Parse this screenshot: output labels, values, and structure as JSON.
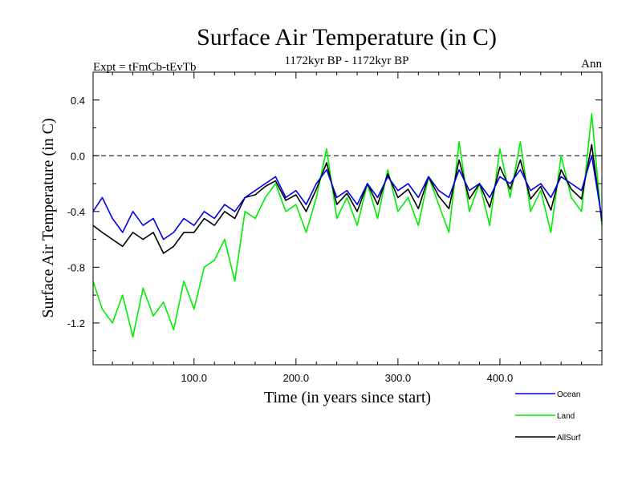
{
  "chart_data": {
    "type": "line",
    "title": "Surface Air Temperature (in C)",
    "subtitle": "1172kyr BP - 1172kyr BP",
    "left_label": "Expt = tFmCb-tEvTb",
    "right_label": "Ann",
    "xlabel": "Time (in years since start)",
    "ylabel": "Surface Air Temperature (in C)",
    "xlim": [
      1,
      500
    ],
    "ylim": [
      -1.5,
      0.6
    ],
    "xticks": [
      100,
      200,
      300,
      400
    ],
    "xtick_labels": [
      "100.0",
      "200.0",
      "300.0",
      "400.0"
    ],
    "yticks": [
      -1.2,
      -0.8,
      -0.4,
      0.0,
      0.4
    ],
    "ytick_labels": [
      "-1.2",
      "-0.8",
      "-0.4",
      "0.0",
      "0.4"
    ],
    "reference_line": 0.0,
    "legend_position": "bottom-right",
    "series": [
      {
        "name": "Ocean",
        "color": "#0000ee",
        "x": [
          1,
          10,
          20,
          30,
          40,
          50,
          60,
          70,
          80,
          90,
          100,
          110,
          120,
          130,
          140,
          150,
          160,
          170,
          180,
          190,
          200,
          210,
          220,
          230,
          240,
          250,
          260,
          270,
          280,
          290,
          300,
          310,
          320,
          330,
          340,
          350,
          360,
          370,
          380,
          390,
          400,
          410,
          420,
          430,
          440,
          450,
          460,
          470,
          480,
          490,
          500
        ],
        "values": [
          -0.4,
          -0.3,
          -0.45,
          -0.55,
          -0.4,
          -0.5,
          -0.45,
          -0.6,
          -0.55,
          -0.45,
          -0.5,
          -0.4,
          -0.45,
          -0.35,
          -0.4,
          -0.3,
          -0.25,
          -0.2,
          -0.15,
          -0.3,
          -0.25,
          -0.35,
          -0.2,
          -0.1,
          -0.3,
          -0.25,
          -0.35,
          -0.2,
          -0.3,
          -0.15,
          -0.25,
          -0.2,
          -0.3,
          -0.15,
          -0.25,
          -0.3,
          -0.1,
          -0.25,
          -0.2,
          -0.3,
          -0.15,
          -0.2,
          -0.1,
          -0.25,
          -0.2,
          -0.3,
          -0.15,
          -0.2,
          -0.25,
          0.0,
          -0.45
        ]
      },
      {
        "name": "Land",
        "color": "#00ee00",
        "x": [
          1,
          10,
          20,
          30,
          40,
          50,
          60,
          70,
          80,
          90,
          100,
          110,
          120,
          130,
          140,
          150,
          160,
          170,
          180,
          190,
          200,
          210,
          220,
          230,
          240,
          250,
          260,
          270,
          280,
          290,
          300,
          310,
          320,
          330,
          340,
          350,
          360,
          370,
          380,
          390,
          400,
          410,
          420,
          430,
          440,
          450,
          460,
          470,
          480,
          490,
          500
        ],
        "values": [
          -0.9,
          -1.1,
          -1.2,
          -1.0,
          -1.3,
          -0.95,
          -1.15,
          -1.05,
          -1.25,
          -0.9,
          -1.1,
          -0.8,
          -0.75,
          -0.6,
          -0.9,
          -0.4,
          -0.45,
          -0.3,
          -0.2,
          -0.4,
          -0.35,
          -0.55,
          -0.3,
          0.05,
          -0.45,
          -0.3,
          -0.5,
          -0.2,
          -0.45,
          -0.1,
          -0.4,
          -0.3,
          -0.5,
          -0.15,
          -0.35,
          -0.55,
          0.1,
          -0.4,
          -0.2,
          -0.5,
          0.05,
          -0.3,
          0.1,
          -0.4,
          -0.25,
          -0.55,
          0.0,
          -0.3,
          -0.4,
          0.3,
          -0.5
        ]
      },
      {
        "name": "AllSurf",
        "color": "#000000",
        "x": [
          1,
          10,
          20,
          30,
          40,
          50,
          60,
          70,
          80,
          90,
          100,
          110,
          120,
          130,
          140,
          150,
          160,
          170,
          180,
          190,
          200,
          210,
          220,
          230,
          240,
          250,
          260,
          270,
          280,
          290,
          300,
          310,
          320,
          330,
          340,
          350,
          360,
          370,
          380,
          390,
          400,
          410,
          420,
          430,
          440,
          450,
          460,
          470,
          480,
          490,
          500
        ],
        "values": [
          -0.5,
          -0.55,
          -0.6,
          -0.65,
          -0.55,
          -0.6,
          -0.55,
          -0.7,
          -0.65,
          -0.55,
          -0.55,
          -0.45,
          -0.5,
          -0.4,
          -0.45,
          -0.3,
          -0.28,
          -0.22,
          -0.18,
          -0.32,
          -0.28,
          -0.4,
          -0.24,
          -0.05,
          -0.35,
          -0.27,
          -0.4,
          -0.2,
          -0.35,
          -0.13,
          -0.3,
          -0.24,
          -0.38,
          -0.15,
          -0.29,
          -0.38,
          -0.03,
          -0.31,
          -0.2,
          -0.37,
          -0.08,
          -0.24,
          -0.03,
          -0.31,
          -0.22,
          -0.39,
          -0.1,
          -0.24,
          -0.31,
          0.08,
          -0.47
        ]
      }
    ]
  }
}
